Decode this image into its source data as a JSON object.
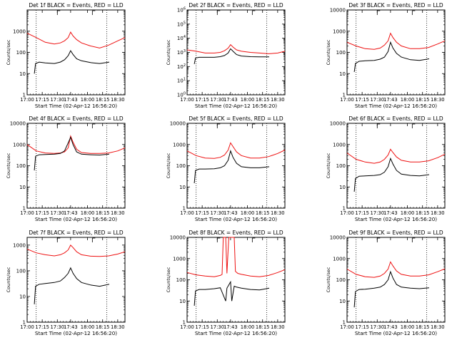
{
  "chart_data": [
    {
      "type": "line",
      "title": "Det 1f BLACK = Events, RED = LLD",
      "xlabel": "Start Time (02-Apr-12 16:56:20)",
      "ylabel": "Counts/sec",
      "yscale": "log",
      "ylim": [
        1,
        10000
      ],
      "ytick_labels": [
        "1",
        "10",
        "100",
        "1000"
      ],
      "yticks": [
        1,
        10,
        100,
        1000
      ],
      "xticks": [
        17.0,
        17.25,
        17.5,
        17.72,
        18.0,
        18.25,
        18.5
      ],
      "xtick_labels": [
        "17:00",
        "17:15",
        "17:30",
        "17:43",
        "18:00",
        "18:15",
        "18:30"
      ],
      "vlines": [
        17.15,
        18.32
      ],
      "markers": [
        17.5,
        18.08
      ],
      "series": [
        {
          "color": "red",
          "x": [
            17.0,
            17.15,
            17.3,
            17.45,
            17.55,
            17.62,
            17.68,
            17.72,
            17.76,
            17.82,
            17.9,
            18.05,
            18.2,
            18.35,
            18.5,
            18.62
          ],
          "y": [
            800,
            500,
            300,
            250,
            280,
            350,
            500,
            900,
            600,
            400,
            280,
            200,
            160,
            220,
            350,
            500
          ]
        },
        {
          "color": "black",
          "x": [
            17.12,
            17.14,
            17.2,
            17.3,
            17.45,
            17.55,
            17.62,
            17.68,
            17.72,
            17.76,
            17.82,
            17.9,
            18.05,
            18.2,
            18.36
          ],
          "y": [
            10,
            30,
            35,
            32,
            30,
            35,
            45,
            70,
            120,
            80,
            50,
            40,
            33,
            30,
            35
          ]
        }
      ]
    },
    {
      "type": "line",
      "title": "Det 2f BLACK = Events, RED = LLD",
      "xlabel": "Start Time (02-Apr-12 16:56:20)",
      "ylabel": "Counts/sec",
      "yscale": "log",
      "ylim": [
        1,
        1000000
      ],
      "ytick_labels": [
        "10^0",
        "10^1",
        "10^2",
        "10^3",
        "10^4",
        "10^5",
        "10^6"
      ],
      "yticks": [
        1,
        10,
        100,
        1000,
        10000,
        100000,
        1000000
      ],
      "xticks": [
        17.0,
        17.25,
        17.5,
        17.72,
        18.0,
        18.25,
        18.5
      ],
      "xtick_labels": [
        "17:00",
        "17:15",
        "17:30",
        "17:43",
        "18:00",
        "18:15",
        "18:30"
      ],
      "vlines": [
        17.15,
        18.32
      ],
      "markers": [
        17.5,
        18.08
      ],
      "series": [
        {
          "color": "red",
          "x": [
            17.0,
            17.15,
            17.3,
            17.45,
            17.55,
            17.62,
            17.68,
            17.72,
            17.76,
            17.82,
            17.9,
            18.05,
            18.2,
            18.35,
            18.5,
            18.62
          ],
          "y": [
            1500,
            1200,
            900,
            900,
            1000,
            1300,
            2000,
            3500,
            2400,
            1500,
            1200,
            1000,
            900,
            800,
            900,
            1200
          ]
        },
        {
          "color": "black",
          "x": [
            17.12,
            17.14,
            17.2,
            17.3,
            17.45,
            17.55,
            17.62,
            17.68,
            17.72,
            17.76,
            17.82,
            17.9,
            18.05,
            18.2,
            18.36
          ],
          "y": [
            150,
            400,
            450,
            450,
            450,
            500,
            600,
            900,
            1800,
            1200,
            700,
            550,
            500,
            480,
            480
          ]
        }
      ]
    },
    {
      "type": "line",
      "title": "Det 3f BLACK = Events, RED = LLD",
      "xlabel": "Start Time (02-Apr-12 16:56:20)",
      "ylabel": "Counts/sec",
      "yscale": "log",
      "ylim": [
        1,
        10000
      ],
      "ytick_labels": [
        "1",
        "10",
        "100",
        "1000",
        "10000"
      ],
      "yticks": [
        1,
        10,
        100,
        1000,
        10000
      ],
      "xticks": [
        17.0,
        17.25,
        17.5,
        17.72,
        18.0,
        18.25,
        18.5
      ],
      "xtick_labels": [
        "17:00",
        "17:15",
        "17:30",
        "17:43",
        "18:00",
        "18:15",
        "18:30"
      ],
      "vlines": [
        17.15,
        18.32
      ],
      "markers": [
        17.5,
        18.08
      ],
      "series": [
        {
          "color": "red",
          "x": [
            17.0,
            17.15,
            17.3,
            17.45,
            17.55,
            17.62,
            17.68,
            17.72,
            17.76,
            17.82,
            17.9,
            18.05,
            18.2,
            18.35,
            18.5,
            18.62
          ],
          "y": [
            300,
            200,
            150,
            140,
            160,
            220,
            350,
            800,
            500,
            300,
            200,
            150,
            150,
            170,
            250,
            350
          ]
        },
        {
          "color": "black",
          "x": [
            17.12,
            17.14,
            17.2,
            17.3,
            17.45,
            17.55,
            17.62,
            17.68,
            17.72,
            17.76,
            17.82,
            17.9,
            18.05,
            18.2,
            18.36
          ],
          "y": [
            12,
            30,
            38,
            40,
            42,
            48,
            60,
            110,
            300,
            160,
            90,
            60,
            45,
            42,
            50
          ]
        }
      ]
    },
    {
      "type": "line",
      "title": "Det 4f BLACK = Events, RED = LLD",
      "xlabel": "Start Time (02-Apr-12 16:56:20)",
      "ylabel": "Counts/sec",
      "yscale": "log",
      "ylim": [
        1,
        10000
      ],
      "ytick_labels": [
        "1",
        "10",
        "100",
        "1000",
        "10000"
      ],
      "yticks": [
        1,
        10,
        100,
        1000,
        10000
      ],
      "xticks": [
        17.0,
        17.25,
        17.5,
        17.72,
        18.0,
        18.25,
        18.5
      ],
      "xtick_labels": [
        "17:00",
        "17:15",
        "17:30",
        "17:43",
        "18:00",
        "18:15",
        "18:30"
      ],
      "vlines": [
        17.15,
        18.32
      ],
      "markers": [
        17.5,
        18.08
      ],
      "series": [
        {
          "color": "red",
          "x": [
            17.0,
            17.15,
            17.3,
            17.45,
            17.55,
            17.62,
            17.68,
            17.72,
            17.76,
            17.82,
            17.9,
            18.05,
            18.2,
            18.35,
            18.5,
            18.62
          ],
          "y": [
            1000,
            500,
            400,
            380,
            400,
            450,
            700,
            2500,
            1300,
            600,
            420,
            380,
            380,
            400,
            500,
            700
          ]
        },
        {
          "color": "black",
          "x": [
            17.12,
            17.14,
            17.2,
            17.3,
            17.45,
            17.55,
            17.62,
            17.68,
            17.72,
            17.76,
            17.82,
            17.9,
            18.05,
            18.2,
            18.36
          ],
          "y": [
            60,
            280,
            330,
            340,
            350,
            380,
            500,
            1200,
            2200,
            1000,
            450,
            350,
            330,
            320,
            350
          ]
        }
      ]
    },
    {
      "type": "line",
      "title": "Det 5f BLACK = Events, RED = LLD",
      "xlabel": "Start Time (02-Apr-12 16:56:20)",
      "ylabel": "Counts/sec",
      "yscale": "log",
      "ylim": [
        1,
        10000
      ],
      "ytick_labels": [
        "1",
        "10",
        "100",
        "1000",
        "10000"
      ],
      "yticks": [
        1,
        10,
        100,
        1000,
        10000
      ],
      "xticks": [
        17.0,
        17.25,
        17.5,
        17.72,
        18.0,
        18.25,
        18.5
      ],
      "xtick_labels": [
        "17:00",
        "17:15",
        "17:30",
        "17:43",
        "18:00",
        "18:15",
        "18:30"
      ],
      "vlines": [
        17.15,
        18.32
      ],
      "markers": [
        17.5,
        18.08
      ],
      "series": [
        {
          "color": "red",
          "x": [
            17.0,
            17.15,
            17.3,
            17.45,
            17.55,
            17.62,
            17.68,
            17.72,
            17.76,
            17.82,
            17.9,
            18.05,
            18.2,
            18.35,
            18.5,
            18.62
          ],
          "y": [
            500,
            300,
            230,
            220,
            250,
            320,
            550,
            1200,
            800,
            450,
            300,
            230,
            230,
            270,
            380,
            550
          ]
        },
        {
          "color": "black",
          "x": [
            17.12,
            17.14,
            17.2,
            17.3,
            17.45,
            17.55,
            17.62,
            17.68,
            17.72,
            17.76,
            17.82,
            17.9,
            18.05,
            18.2,
            18.36
          ],
          "y": [
            15,
            60,
            70,
            70,
            72,
            80,
            100,
            180,
            500,
            250,
            130,
            90,
            80,
            80,
            90
          ]
        }
      ]
    },
    {
      "type": "line",
      "title": "Det 6f BLACK = Events, RED = LLD",
      "xlabel": "Start Time (02-Apr-12 16:56:20)",
      "ylabel": "Counts/sec",
      "yscale": "log",
      "ylim": [
        1,
        10000
      ],
      "ytick_labels": [
        "1",
        "10",
        "100",
        "1000",
        "10000"
      ],
      "yticks": [
        1,
        10,
        100,
        1000,
        10000
      ],
      "xticks": [
        17.0,
        17.25,
        17.5,
        17.72,
        18.0,
        18.25,
        18.5
      ],
      "xtick_labels": [
        "17:00",
        "17:15",
        "17:30",
        "17:43",
        "18:00",
        "18:15",
        "18:30"
      ],
      "vlines": [
        17.15,
        18.32
      ],
      "markers": [
        17.5,
        18.08
      ],
      "series": [
        {
          "color": "red",
          "x": [
            17.0,
            17.15,
            17.3,
            17.45,
            17.55,
            17.62,
            17.68,
            17.72,
            17.76,
            17.82,
            17.9,
            18.05,
            18.2,
            18.35,
            18.5,
            18.62
          ],
          "y": [
            400,
            200,
            150,
            130,
            150,
            200,
            320,
            600,
            420,
            260,
            180,
            150,
            150,
            170,
            240,
            350
          ]
        },
        {
          "color": "black",
          "x": [
            17.12,
            17.14,
            17.2,
            17.3,
            17.45,
            17.55,
            17.62,
            17.68,
            17.72,
            17.76,
            17.82,
            17.9,
            18.05,
            18.2,
            18.36
          ],
          "y": [
            6,
            25,
            32,
            33,
            35,
            38,
            50,
            90,
            220,
            120,
            60,
            40,
            35,
            33,
            38
          ]
        }
      ]
    },
    {
      "type": "line",
      "title": "Det 7f BLACK = Events, RED = LLD",
      "xlabel": "Start Time (02-Apr-12 16:56:20)",
      "ylabel": "Counts/sec",
      "yscale": "log",
      "ylim": [
        1,
        2000
      ],
      "ytick_labels": [
        "1",
        "10",
        "100",
        "1000"
      ],
      "yticks": [
        1,
        10,
        100,
        1000
      ],
      "xticks": [
        17.0,
        17.25,
        17.5,
        17.72,
        18.0,
        18.25,
        18.5
      ],
      "xtick_labels": [
        "17:00",
        "17:15",
        "17:30",
        "17:43",
        "18:00",
        "18:15",
        "18:30"
      ],
      "vlines": [
        17.15,
        18.32
      ],
      "markers": [
        17.5,
        18.08
      ],
      "series": [
        {
          "color": "red",
          "x": [
            17.0,
            17.15,
            17.3,
            17.45,
            17.55,
            17.62,
            17.68,
            17.72,
            17.76,
            17.82,
            17.9,
            18.05,
            18.2,
            18.35,
            18.5,
            18.62
          ],
          "y": [
            700,
            500,
            420,
            380,
            420,
            500,
            650,
            1000,
            800,
            550,
            420,
            370,
            360,
            380,
            450,
            550
          ]
        },
        {
          "color": "black",
          "x": [
            17.12,
            17.14,
            17.2,
            17.3,
            17.45,
            17.55,
            17.62,
            17.68,
            17.72,
            17.76,
            17.82,
            17.9,
            18.05,
            18.2,
            18.36
          ],
          "y": [
            5,
            25,
            30,
            32,
            35,
            40,
            55,
            80,
            130,
            80,
            50,
            35,
            28,
            25,
            30
          ]
        }
      ]
    },
    {
      "type": "line",
      "title": "Det 8f BLACK = Events, RED = LLD",
      "xlabel": "Start Time (02-Apr-12 16:56:20)",
      "ylabel": "Counts/sec",
      "yscale": "log",
      "ylim": [
        1,
        10000
      ],
      "ytick_labels": [
        "1",
        "10",
        "100",
        "1000",
        "10000"
      ],
      "yticks": [
        1,
        10,
        100,
        1000,
        10000
      ],
      "xticks": [
        17.0,
        17.25,
        17.5,
        17.72,
        18.0,
        18.25,
        18.5
      ],
      "xtick_labels": [
        "17:00",
        "17:15",
        "17:30",
        "17:43",
        "18:00",
        "18:15",
        "18:30"
      ],
      "vlines": [
        17.15,
        18.32
      ],
      "markers": [
        17.5,
        18.08
      ],
      "series": [
        {
          "color": "red",
          "x": [
            17.0,
            17.15,
            17.3,
            17.45,
            17.55,
            17.58,
            17.6,
            17.64,
            17.66,
            17.69,
            17.72,
            17.78,
            17.8,
            17.84,
            17.9,
            18.05,
            18.2,
            18.35,
            18.5,
            18.62
          ],
          "y": [
            220,
            170,
            150,
            140,
            160,
            180,
            10000,
            10000,
            200,
            10000,
            10000,
            10000,
            250,
            200,
            180,
            150,
            140,
            160,
            220,
            300
          ]
        },
        {
          "color": "black",
          "x": [
            17.12,
            17.14,
            17.2,
            17.3,
            17.45,
            17.55,
            17.64,
            17.66,
            17.72,
            17.74,
            17.78,
            17.82,
            17.9,
            18.05,
            18.2,
            18.36
          ],
          "y": [
            6,
            30,
            35,
            35,
            38,
            42,
            10,
            40,
            80,
            10,
            50,
            45,
            40,
            35,
            33,
            40
          ]
        }
      ]
    },
    {
      "type": "line",
      "title": "Det 9f BLACK = Events, RED = LLD",
      "xlabel": "Start Time (02-Apr-12 16:56:20)",
      "ylabel": "Counts/sec",
      "yscale": "log",
      "ylim": [
        1,
        10000
      ],
      "ytick_labels": [
        "1",
        "10",
        "100",
        "1000",
        "10000"
      ],
      "yticks": [
        1,
        10,
        100,
        1000,
        10000
      ],
      "xticks": [
        17.0,
        17.25,
        17.5,
        17.72,
        18.0,
        18.25,
        18.5
      ],
      "xtick_labels": [
        "17:00",
        "17:15",
        "17:30",
        "17:43",
        "18:00",
        "18:15",
        "18:30"
      ],
      "vlines": [
        17.15,
        18.32
      ],
      "markers": [
        17.5,
        18.08
      ],
      "series": [
        {
          "color": "red",
          "x": [
            17.0,
            17.15,
            17.3,
            17.45,
            17.55,
            17.62,
            17.68,
            17.72,
            17.76,
            17.82,
            17.9,
            18.05,
            18.2,
            18.35,
            18.5,
            18.62
          ],
          "y": [
            320,
            180,
            140,
            130,
            150,
            200,
            320,
            700,
            450,
            260,
            180,
            150,
            150,
            170,
            240,
            330
          ]
        },
        {
          "color": "black",
          "x": [
            17.12,
            17.14,
            17.2,
            17.3,
            17.45,
            17.55,
            17.62,
            17.68,
            17.72,
            17.76,
            17.82,
            17.9,
            18.05,
            18.2,
            18.36
          ],
          "y": [
            5,
            28,
            35,
            36,
            40,
            45,
            60,
            100,
            240,
            120,
            60,
            45,
            40,
            38,
            42
          ]
        }
      ]
    }
  ]
}
